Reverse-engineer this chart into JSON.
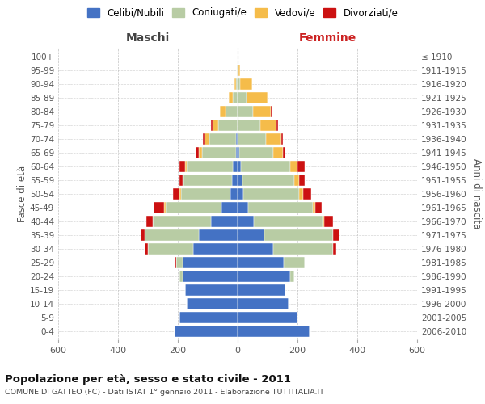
{
  "age_groups": [
    "0-4",
    "5-9",
    "10-14",
    "15-19",
    "20-24",
    "25-29",
    "30-34",
    "35-39",
    "40-44",
    "45-49",
    "50-54",
    "55-59",
    "60-64",
    "65-69",
    "70-74",
    "75-79",
    "80-84",
    "85-89",
    "90-94",
    "95-99",
    "100+"
  ],
  "birth_years": [
    "2006-2010",
    "2001-2005",
    "1996-2000",
    "1991-1995",
    "1986-1990",
    "1981-1985",
    "1976-1980",
    "1971-1975",
    "1966-1970",
    "1961-1965",
    "1956-1960",
    "1951-1955",
    "1946-1950",
    "1941-1945",
    "1936-1940",
    "1931-1935",
    "1926-1930",
    "1921-1925",
    "1916-1920",
    "1911-1915",
    "≤ 1910"
  ],
  "male": {
    "celibi": [
      210,
      195,
      170,
      175,
      185,
      185,
      150,
      130,
      90,
      55,
      25,
      20,
      15,
      5,
      5,
      0,
      0,
      0,
      0,
      0,
      0
    ],
    "coniugati": [
      0,
      0,
      0,
      0,
      10,
      20,
      150,
      180,
      195,
      185,
      165,
      160,
      155,
      115,
      90,
      65,
      40,
      15,
      5,
      2,
      0
    ],
    "vedovi": [
      0,
      0,
      0,
      0,
      0,
      0,
      0,
      0,
      0,
      5,
      5,
      5,
      5,
      10,
      15,
      20,
      20,
      15,
      5,
      0,
      0
    ],
    "divorziati": [
      0,
      0,
      0,
      0,
      0,
      5,
      10,
      15,
      20,
      35,
      20,
      10,
      20,
      10,
      5,
      5,
      0,
      0,
      0,
      0,
      0
    ]
  },
  "female": {
    "nubili": [
      240,
      200,
      170,
      160,
      175,
      155,
      120,
      90,
      55,
      35,
      20,
      15,
      10,
      5,
      0,
      0,
      0,
      0,
      0,
      0,
      0
    ],
    "coniugate": [
      0,
      0,
      0,
      0,
      15,
      70,
      200,
      230,
      230,
      215,
      185,
      175,
      165,
      115,
      95,
      75,
      50,
      30,
      8,
      2,
      0
    ],
    "vedove": [
      0,
      0,
      0,
      0,
      0,
      0,
      0,
      0,
      5,
      10,
      15,
      15,
      25,
      30,
      50,
      55,
      60,
      70,
      40,
      5,
      2
    ],
    "divorziate": [
      0,
      0,
      0,
      0,
      0,
      0,
      10,
      20,
      30,
      20,
      25,
      20,
      25,
      10,
      5,
      5,
      5,
      0,
      0,
      0,
      0
    ]
  },
  "colors": {
    "celibi": "#4472c4",
    "coniugati": "#b8cca4",
    "vedovi": "#f5bc4a",
    "divorziati": "#cc1111"
  },
  "title": "Popolazione per età, sesso e stato civile - 2011",
  "subtitle": "COMUNE DI GATTEO (FC) - Dati ISTAT 1° gennaio 2011 - Elaborazione TUTTITALIA.IT",
  "xlabel_left": "Maschi",
  "xlabel_right": "Femmine",
  "ylabel_left": "Fasce di età",
  "ylabel_right": "Anni di nascita",
  "xlim": 600,
  "legend_labels": [
    "Celibi/Nubili",
    "Coniugati/e",
    "Vedovi/e",
    "Divorziati/e"
  ],
  "bg_color": "#ffffff",
  "grid_color": "#bbbbbb"
}
